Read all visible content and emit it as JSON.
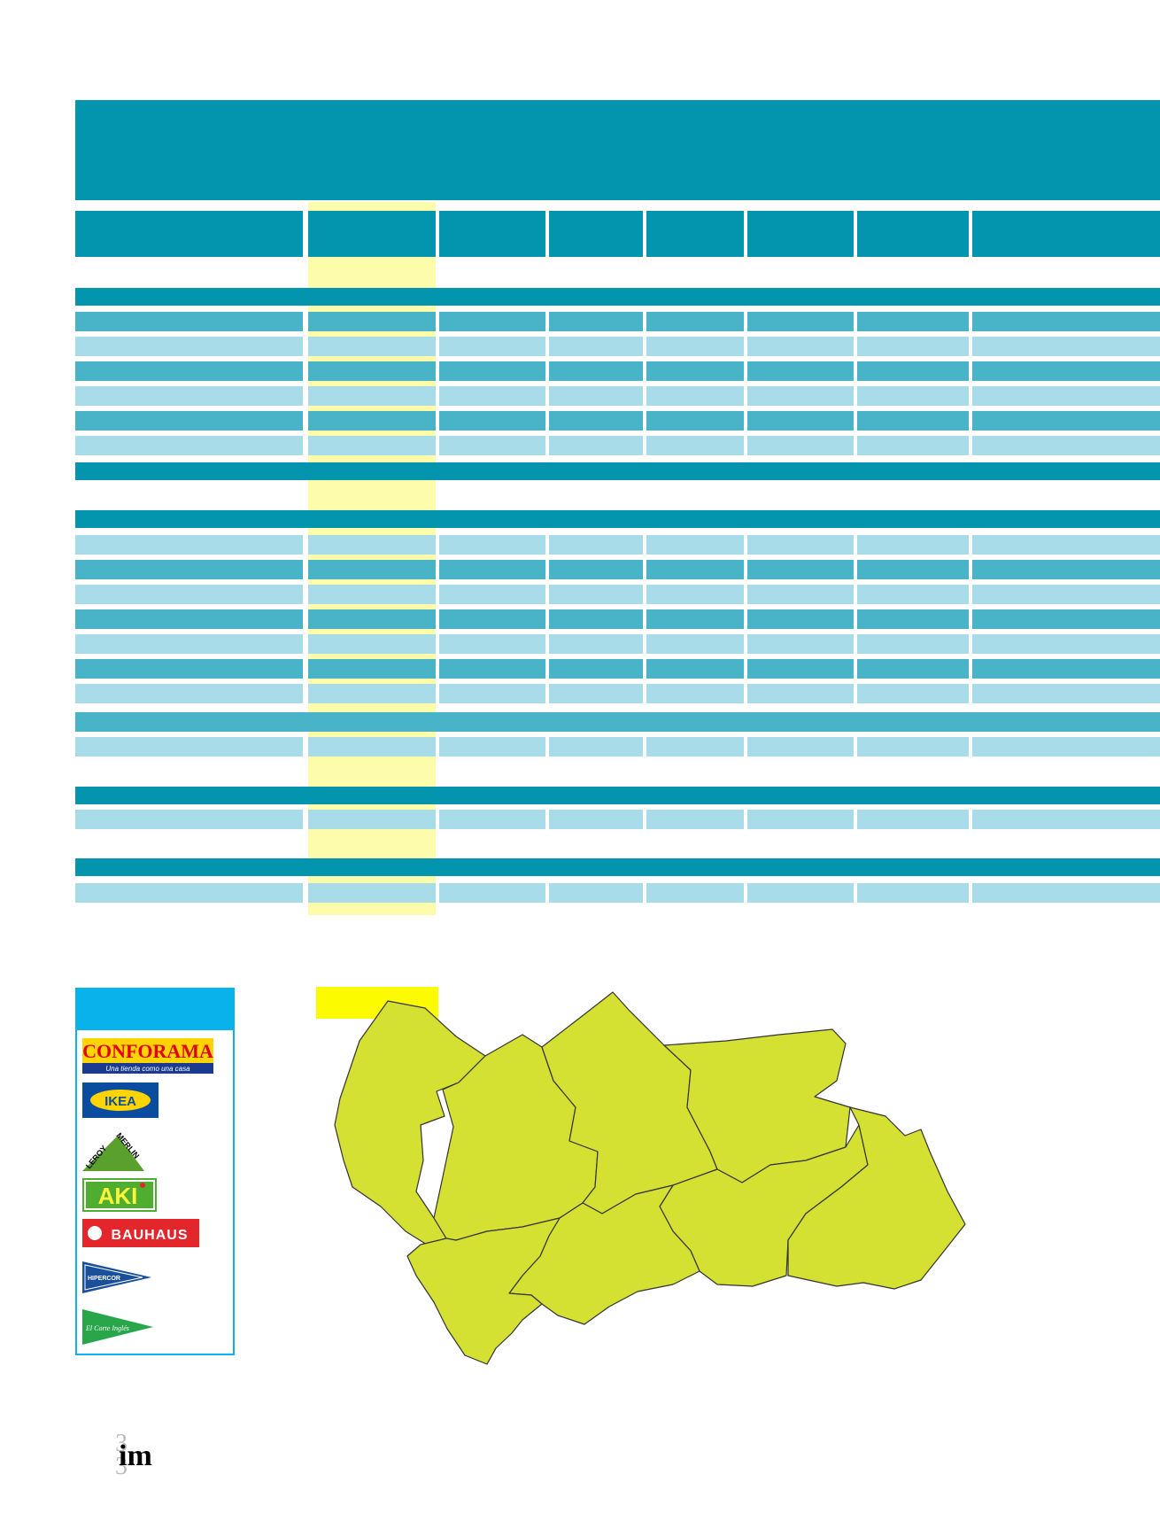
{
  "legend": {
    "logos": [
      {
        "name": "CONFORAMA",
        "tagline": "Una tienda como una casa",
        "color": "#e0001a"
      },
      {
        "name": "IKEA",
        "color": "#0a4d9e"
      },
      {
        "name": "LEROY MERLIN",
        "color": "#5aa02c"
      },
      {
        "name": "AKI",
        "color": "#4fae2f"
      },
      {
        "name": "BAUHAUS",
        "color": "#e3262c"
      },
      {
        "name": "HIPERCOR",
        "color": "#1a4f9c"
      },
      {
        "name": "El Corte Inglés",
        "color": "#2aa64a"
      }
    ]
  },
  "colors": {
    "dark_teal": "#0395ad",
    "medium_teal": "#49b4c7",
    "light_teal": "#a8dce8",
    "highlight_yellow": "#fdfcaa",
    "legend_blue": "#09b2ea",
    "map_green": "#d4e032"
  },
  "map": {
    "region": "Andalucía",
    "icons": [
      "family-icon",
      "car-icon",
      "worker-icon",
      "money-bag-icon"
    ]
  },
  "footer": {
    "brand": "im"
  }
}
